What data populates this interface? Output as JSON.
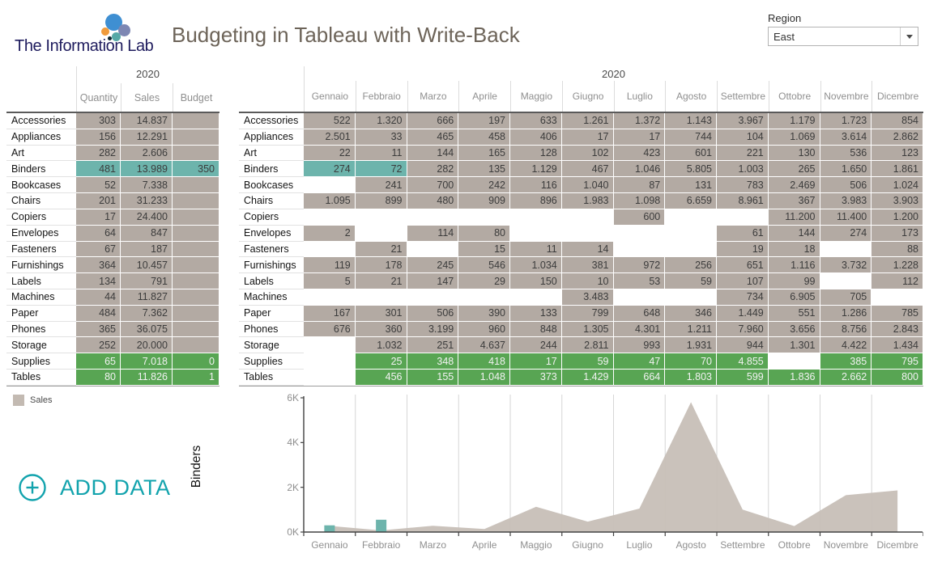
{
  "header": {
    "logo_text": "The Information Lab",
    "title": "Budgeting in Tableau with Write-Back",
    "region_label": "Region",
    "region_value": "East"
  },
  "left_table": {
    "year": "2020",
    "columns": [
      "Quantity",
      "Sales",
      "Budget"
    ],
    "rows": [
      {
        "label": "Accessories",
        "quantity": "303",
        "sales": "14.837",
        "budget": "",
        "style": "default"
      },
      {
        "label": "Appliances",
        "quantity": "156",
        "sales": "12.291",
        "budget": "",
        "style": "default"
      },
      {
        "label": "Art",
        "quantity": "282",
        "sales": "2.606",
        "budget": "",
        "style": "default"
      },
      {
        "label": "Binders",
        "quantity": "481",
        "sales": "13.989",
        "budget": "350",
        "style": "teal"
      },
      {
        "label": "Bookcases",
        "quantity": "52",
        "sales": "7.338",
        "budget": "",
        "style": "default"
      },
      {
        "label": "Chairs",
        "quantity": "201",
        "sales": "31.233",
        "budget": "",
        "style": "default"
      },
      {
        "label": "Copiers",
        "quantity": "17",
        "sales": "24.400",
        "budget": "",
        "style": "default"
      },
      {
        "label": "Envelopes",
        "quantity": "64",
        "sales": "847",
        "budget": "",
        "style": "default"
      },
      {
        "label": "Fasteners",
        "quantity": "67",
        "sales": "187",
        "budget": "",
        "style": "default"
      },
      {
        "label": "Furnishings",
        "quantity": "364",
        "sales": "10.457",
        "budget": "",
        "style": "default"
      },
      {
        "label": "Labels",
        "quantity": "134",
        "sales": "791",
        "budget": "",
        "style": "default"
      },
      {
        "label": "Machines",
        "quantity": "44",
        "sales": "11.827",
        "budget": "",
        "style": "default"
      },
      {
        "label": "Paper",
        "quantity": "484",
        "sales": "7.362",
        "budget": "",
        "style": "default"
      },
      {
        "label": "Phones",
        "quantity": "365",
        "sales": "36.075",
        "budget": "",
        "style": "default"
      },
      {
        "label": "Storage",
        "quantity": "252",
        "sales": "20.000",
        "budget": "",
        "style": "default"
      },
      {
        "label": "Supplies",
        "quantity": "65",
        "sales": "7.018",
        "budget": "0",
        "style": "green"
      },
      {
        "label": "Tables",
        "quantity": "80",
        "sales": "11.826",
        "budget": "1",
        "style": "green"
      }
    ]
  },
  "month_table": {
    "year": "2020",
    "months": [
      "Gennaio",
      "Febbraio",
      "Marzo",
      "Aprile",
      "Maggio",
      "Giugno",
      "Luglio",
      "Agosto",
      "Settembre",
      "Ottobre",
      "Novembre",
      "Dicembre"
    ],
    "rows": [
      {
        "label": "Accessories",
        "style": "default",
        "teal_cells": [],
        "values": [
          "522",
          "1.320",
          "666",
          "197",
          "633",
          "1.261",
          "1.372",
          "1.143",
          "3.967",
          "1.179",
          "1.723",
          "854"
        ]
      },
      {
        "label": "Appliances",
        "style": "default",
        "teal_cells": [],
        "values": [
          "2.501",
          "33",
          "465",
          "458",
          "406",
          "17",
          "17",
          "744",
          "104",
          "1.069",
          "3.614",
          "2.862"
        ]
      },
      {
        "label": "Art",
        "style": "default",
        "teal_cells": [],
        "values": [
          "22",
          "11",
          "144",
          "165",
          "128",
          "102",
          "423",
          "601",
          "221",
          "130",
          "536",
          "123"
        ]
      },
      {
        "label": "Binders",
        "style": "default",
        "teal_cells": [
          0,
          1
        ],
        "values": [
          "274",
          "72",
          "282",
          "135",
          "1.129",
          "467",
          "1.046",
          "5.805",
          "1.003",
          "265",
          "1.650",
          "1.861"
        ]
      },
      {
        "label": "Bookcases",
        "style": "default",
        "teal_cells": [],
        "values": [
          null,
          "241",
          "700",
          "242",
          "116",
          "1.040",
          "87",
          "131",
          "783",
          "2.469",
          "506",
          "1.024"
        ]
      },
      {
        "label": "Chairs",
        "style": "default",
        "teal_cells": [],
        "values": [
          "1.095",
          "899",
          "480",
          "909",
          "896",
          "1.983",
          "1.098",
          "6.659",
          "8.961",
          "367",
          "3.983",
          "3.903"
        ]
      },
      {
        "label": "Copiers",
        "style": "default",
        "teal_cells": [],
        "values": [
          null,
          null,
          null,
          null,
          null,
          null,
          "600",
          null,
          null,
          "11.200",
          "11.400",
          "1.200"
        ]
      },
      {
        "label": "Envelopes",
        "style": "default",
        "teal_cells": [],
        "values": [
          "2",
          null,
          "114",
          "80",
          null,
          null,
          null,
          null,
          "61",
          "144",
          "274",
          "173"
        ]
      },
      {
        "label": "Fasteners",
        "style": "default",
        "teal_cells": [],
        "values": [
          null,
          "21",
          null,
          "15",
          "11",
          "14",
          null,
          null,
          "19",
          "18",
          null,
          "88"
        ]
      },
      {
        "label": "Furnishings",
        "style": "default",
        "teal_cells": [],
        "values": [
          "119",
          "178",
          "245",
          "546",
          "1.034",
          "381",
          "972",
          "256",
          "651",
          "1.116",
          "3.732",
          "1.228"
        ]
      },
      {
        "label": "Labels",
        "style": "default",
        "teal_cells": [],
        "values": [
          "5",
          "21",
          "147",
          "29",
          "150",
          "10",
          "53",
          "59",
          "107",
          "99",
          null,
          "112"
        ]
      },
      {
        "label": "Machines",
        "style": "default",
        "teal_cells": [],
        "values": [
          null,
          null,
          null,
          null,
          null,
          "3.483",
          null,
          null,
          "734",
          "6.905",
          "705",
          null
        ]
      },
      {
        "label": "Paper",
        "style": "default",
        "teal_cells": [],
        "values": [
          "167",
          "301",
          "506",
          "390",
          "133",
          "799",
          "648",
          "346",
          "1.449",
          "551",
          "1.286",
          "785"
        ]
      },
      {
        "label": "Phones",
        "style": "default",
        "teal_cells": [],
        "values": [
          "676",
          "360",
          "3.199",
          "960",
          "848",
          "1.305",
          "4.301",
          "1.211",
          "7.960",
          "3.656",
          "8.756",
          "2.843"
        ]
      },
      {
        "label": "Storage",
        "style": "default",
        "teal_cells": [],
        "values": [
          null,
          "1.032",
          "251",
          "4.637",
          "244",
          "2.811",
          "993",
          "1.931",
          "944",
          "1.301",
          "4.422",
          "1.434"
        ]
      },
      {
        "label": "Supplies",
        "style": "green",
        "teal_cells": [],
        "values": [
          null,
          "25",
          "348",
          "418",
          "17",
          "59",
          "47",
          "70",
          "4.855",
          null,
          "385",
          "795"
        ]
      },
      {
        "label": "Tables",
        "style": "green",
        "teal_cells": [],
        "values": [
          null,
          "456",
          "155",
          "1.048",
          "373",
          "1.429",
          "664",
          "1.803",
          "599",
          "1.836",
          "2.662",
          "800"
        ]
      }
    ]
  },
  "legend": {
    "label": "Sales",
    "swatch_color": "#c3bab2"
  },
  "add_data": {
    "label": "ADD DATA",
    "color": "#12a3ad"
  },
  "chart_data": {
    "type": "area",
    "vertical_axis_title": "Binders",
    "x": [
      "Gennaio",
      "Febbraio",
      "Marzo",
      "Aprile",
      "Maggio",
      "Giugno",
      "Luglio",
      "Agosto",
      "Settembre",
      "Ottobre",
      "Novembre",
      "Dicembre"
    ],
    "series": [
      {
        "name": "Sales",
        "type": "area",
        "color": "#c7bfb7",
        "values": [
          274,
          72,
          282,
          135,
          1129,
          467,
          1046,
          5805,
          1003,
          265,
          1650,
          1861
        ]
      },
      {
        "name": "teal-bars",
        "type": "bar",
        "color": "#6db4ac",
        "values": [
          300,
          550,
          null,
          null,
          null,
          null,
          null,
          null,
          null,
          null,
          null,
          null
        ]
      }
    ],
    "y_ticks": [
      "0K",
      "2K",
      "4K",
      "6K"
    ],
    "ylim": [
      0,
      6300
    ],
    "grid": "vertical",
    "legend_position": "upper-left-panel"
  },
  "colors": {
    "cell_fill": "#b3aaa3",
    "teal_highlight": "#6db4ac",
    "green_highlight": "#58a553",
    "accent_teal": "#12a3ad",
    "title_gray": "#6d6459"
  }
}
